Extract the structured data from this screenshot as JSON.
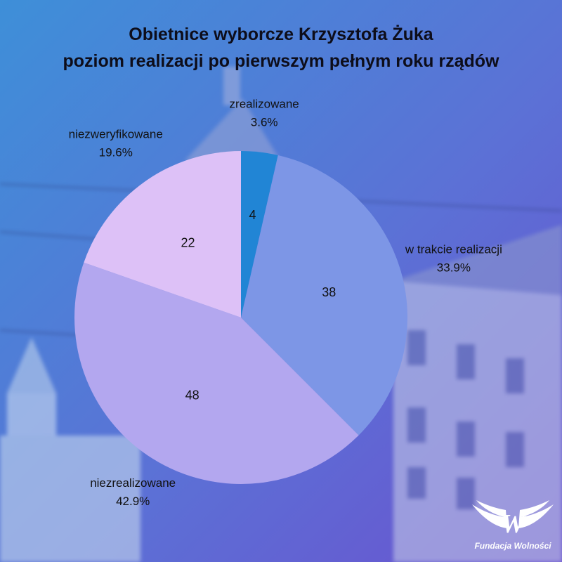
{
  "chart_data": {
    "type": "pie",
    "title": "Obietnice wyborcze Krzysztofa Żuka",
    "subtitle": "poziom realizacji po pierwszym pełnym roku rządów",
    "slices": [
      {
        "label": "zrealizowane",
        "value": 4,
        "percent": "3.6%",
        "color": "#2185d5"
      },
      {
        "label": "w trakcie realizacji",
        "value": 38,
        "percent": "33.9%",
        "color": "#7d96e6"
      },
      {
        "label": "niezrealizowane",
        "value": 48,
        "percent": "42.9%",
        "color": "#b3a7ef"
      },
      {
        "label": "niezweryfikowane",
        "value": 22,
        "percent": "19.6%",
        "color": "#ddc1f7"
      }
    ],
    "start": "top",
    "direction": "clockwise"
  },
  "brand": {
    "name": "Fundacja Wolności",
    "logo_letter": "W",
    "logo_icon": "winged-w-icon",
    "color": "#ffffff"
  },
  "background": {
    "gradient_start": "#3e8fd8",
    "gradient_end": "#6a52cf"
  }
}
